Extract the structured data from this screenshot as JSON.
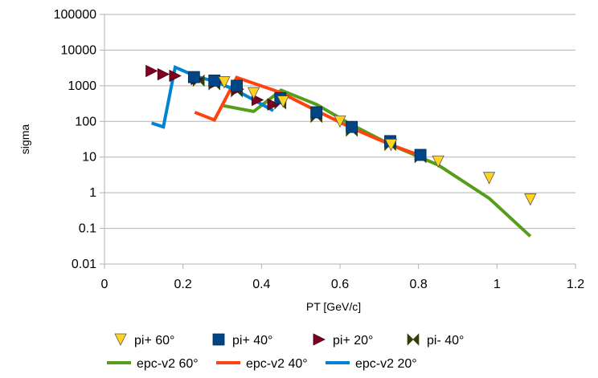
{
  "chart_data": {
    "type": "scatter",
    "title": "",
    "xlabel": "PT [GeV/c]",
    "ylabel": "sigma",
    "xlim": [
      0,
      1.2
    ],
    "ylim": [
      0.01,
      100000
    ],
    "yscale": "log",
    "grid": "horizontal",
    "legend_position": "bottom",
    "x_ticks": [
      "0",
      "0.2",
      "0.4",
      "0.6",
      "0.8",
      "1",
      "1.2"
    ],
    "y_ticks": [
      "0.01",
      "0.1",
      "1",
      "10",
      "100",
      "1000",
      "10000",
      "100000"
    ],
    "series": [
      {
        "name": "pi+ 60°",
        "kind": "marker",
        "marker": "triangle-down",
        "color": "#ffd320",
        "points": [
          [
            0.305,
            1250
          ],
          [
            0.38,
            620
          ],
          [
            0.455,
            360
          ],
          [
            0.6,
            100
          ],
          [
            0.73,
            22
          ],
          [
            0.85,
            7.5
          ],
          [
            0.98,
            2.6
          ],
          [
            1.085,
            0.65
          ]
        ]
      },
      {
        "name": "pi+ 40°",
        "kind": "marker",
        "marker": "square",
        "color": "#004586",
        "points": [
          [
            0.228,
            1750
          ],
          [
            0.28,
            1400
          ],
          [
            0.337,
            1000
          ],
          [
            0.448,
            450
          ],
          [
            0.54,
            180
          ],
          [
            0.63,
            70
          ],
          [
            0.728,
            28
          ],
          [
            0.805,
            11.5
          ]
        ]
      },
      {
        "name": "pi+ 20°",
        "kind": "marker",
        "marker": "triangle-right",
        "color": "#7e0021",
        "points": [
          [
            0.12,
            2600
          ],
          [
            0.15,
            2100
          ],
          [
            0.18,
            1900
          ],
          [
            0.235,
            1550
          ],
          [
            0.285,
            1250
          ],
          [
            0.34,
            800
          ],
          [
            0.39,
            400
          ],
          [
            0.43,
            300
          ]
        ]
      },
      {
        "name": "pi- 40°",
        "kind": "marker",
        "marker": "bowtie",
        "color": "#314004",
        "points": [
          [
            0.24,
            1400
          ],
          [
            0.28,
            1100
          ],
          [
            0.337,
            700
          ],
          [
            0.448,
            320
          ],
          [
            0.54,
            135
          ],
          [
            0.63,
            55
          ],
          [
            0.728,
            22
          ],
          [
            0.805,
            10
          ]
        ]
      },
      {
        "name": "epc-v2 60°",
        "kind": "line",
        "color": "#579d1c",
        "points": [
          [
            0.3,
            280
          ],
          [
            0.38,
            190
          ],
          [
            0.45,
            750
          ],
          [
            0.54,
            300
          ],
          [
            0.63,
            80
          ],
          [
            0.73,
            22
          ],
          [
            0.85,
            6
          ],
          [
            0.98,
            0.7
          ],
          [
            1.085,
            0.06
          ]
        ]
      },
      {
        "name": "epc-v2 40°",
        "kind": "line",
        "color": "#ff420e",
        "points": [
          [
            0.23,
            180
          ],
          [
            0.28,
            110
          ],
          [
            0.337,
            1700
          ],
          [
            0.448,
            650
          ],
          [
            0.54,
            200
          ],
          [
            0.63,
            65
          ],
          [
            0.73,
            22
          ],
          [
            0.805,
            11
          ]
        ]
      },
      {
        "name": "epc-v2 20°",
        "kind": "line",
        "color": "#0084d1",
        "points": [
          [
            0.12,
            90
          ],
          [
            0.15,
            70
          ],
          [
            0.18,
            3300
          ],
          [
            0.235,
            1800
          ],
          [
            0.285,
            1300
          ],
          [
            0.34,
            700
          ],
          [
            0.39,
            350
          ],
          [
            0.43,
            200
          ]
        ]
      }
    ]
  }
}
